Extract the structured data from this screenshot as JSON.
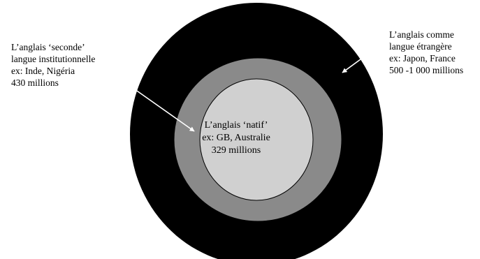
{
  "colors": {
    "outer_circle": "#000000",
    "middle_circle": "#8a8a8a",
    "inner_circle": "#d0d0d0",
    "arrow": "#ffffff",
    "text": "#000000"
  },
  "labels": {
    "outer": {
      "line1": "L’anglais comme",
      "line2": "langue étrangère",
      "line3": "ex: Japon, France",
      "line4": "500 -1 000 millions"
    },
    "middle": {
      "line1": "L’anglais ‘seconde’",
      "line2": "langue institutionnelle",
      "line3": "ex: Inde, Nigéria",
      "line4": "430 millions"
    },
    "inner": {
      "line1": "L’anglais ‘natif’",
      "line2": "ex: GB, Australie",
      "line3": "329 millions"
    }
  }
}
